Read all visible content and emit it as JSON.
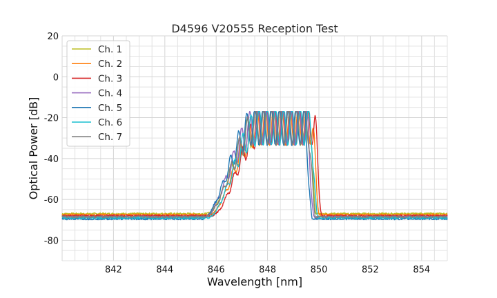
{
  "chart_data": {
    "type": "line",
    "title": "D4596 V20555 Reception Test",
    "xlabel": "Wavelength [nm]",
    "ylabel": "Optical Power [dB]",
    "xlim": [
      840.0,
      855.0
    ],
    "ylim": [
      -90,
      20
    ],
    "xticks": [
      842,
      844,
      846,
      848,
      850,
      852,
      854
    ],
    "yticks": [
      20,
      0,
      -20,
      -40,
      -60,
      -80
    ],
    "grid": true,
    "legend_position": "top-left",
    "series": [
      {
        "name": "Ch. 1",
        "color": "#bcbd22",
        "base": -67,
        "offset": 0.0,
        "peakSign": 1
      },
      {
        "name": "Ch. 2",
        "color": "#ff7f0e",
        "base": -67.5,
        "offset": 0.12,
        "peakSign": -1
      },
      {
        "name": "Ch. 3",
        "color": "#d62728",
        "base": -68,
        "offset": 0.22,
        "peakSign": 1
      },
      {
        "name": "Ch. 4",
        "color": "#9467bd",
        "base": -68.5,
        "offset": -0.08,
        "peakSign": -1
      },
      {
        "name": "Ch. 5",
        "color": "#1f77b4",
        "base": -69.5,
        "offset": -0.15,
        "peakSign": 1
      },
      {
        "name": "Ch. 6",
        "color": "#17becf",
        "base": -69,
        "offset": 0.06,
        "peakSign": -1
      },
      {
        "name": "Ch. 7",
        "color": "#7f7f7f",
        "base": -68.5,
        "offset": -0.03,
        "peakSign": 1
      }
    ],
    "shape": {
      "rise_start": 845.6,
      "band_start": 847.6,
      "band_end": 849.6,
      "fall_end": 849.9,
      "band_level": -20,
      "ripple_period": 0.32
    }
  }
}
